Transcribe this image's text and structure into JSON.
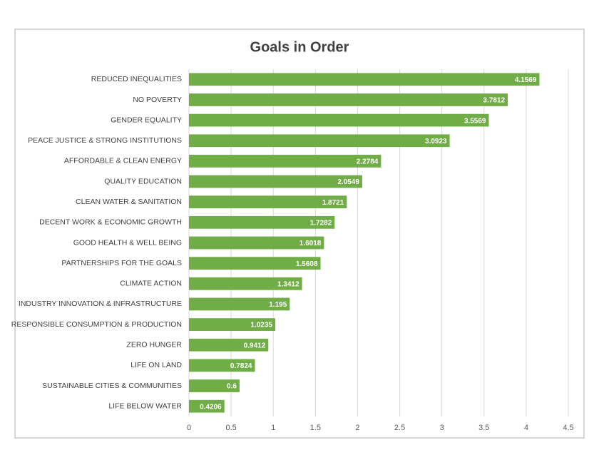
{
  "chart_data": {
    "type": "bar",
    "orientation": "horizontal",
    "title": "Goals in Order",
    "categories": [
      "REDUCED INEQUALITIES",
      "NO POVERTY",
      "GENDER EQUALITY",
      "PEACE JUSTICE & STRONG INSTITUTIONS",
      "AFFORDABLE & CLEAN ENERGY",
      "QUALITY EDUCATION",
      "CLEAN WATER & SANITATION",
      "DECENT WORK & ECONOMIC GROWTH",
      "GOOD HEALTH & WELL BEING",
      "PARTNERSHIPS FOR THE GOALS",
      "CLIMATE ACTION",
      "INDUSTRY INNOVATION & INFRASTRUCTURE",
      "RESPONSIBLE CONSUMPTION & PRODUCTION",
      "ZERO HUNGER",
      "LIFE ON LAND",
      "SUSTAINABLE CITIES & COMMUNITIES",
      "LIFE BELOW WATER"
    ],
    "values": [
      4.1569,
      3.7812,
      3.5569,
      3.0923,
      2.2784,
      2.0549,
      1.8721,
      1.7282,
      1.6018,
      1.5608,
      1.3412,
      1.195,
      1.0235,
      0.9412,
      0.7824,
      0.6,
      0.4206
    ],
    "color": "#70ad47",
    "xlim": [
      0,
      4.5
    ],
    "xticks": [
      0,
      0.5,
      1,
      1.5,
      2,
      2.5,
      3,
      3.5,
      4,
      4.5
    ],
    "grid": true
  }
}
